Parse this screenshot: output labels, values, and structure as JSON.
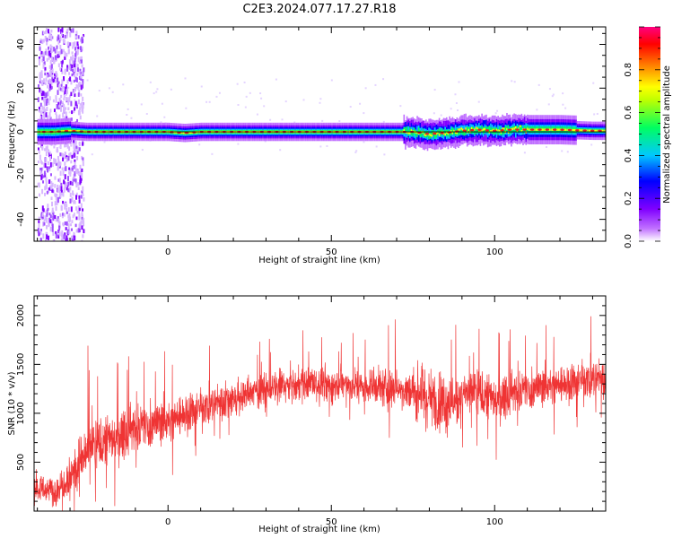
{
  "title": "C2E3.2024.077.17.27.R18",
  "colors": {
    "snr_trace": "#ef3434",
    "ridge_center": "#e02020",
    "axis": "#000000",
    "background": "#ffffff"
  },
  "chart_data": [
    {
      "type": "heatmap",
      "name": "spectrogram",
      "xlabel": "Height of straight line (km)",
      "ylabel": "Frequency (Hz)",
      "xlim": [
        -41,
        134
      ],
      "ylim": [
        -50,
        48
      ],
      "xticks": [
        0,
        50,
        100
      ],
      "yticks": [
        -40,
        -20,
        0,
        20,
        40
      ],
      "grid": false,
      "colorbar": {
        "label": "Normalized spectral amplitude",
        "range": [
          0,
          1
        ],
        "ticks": [
          "0.0",
          "0.2",
          "0.4",
          "0.6",
          "0.8"
        ],
        "colormap": [
          "#ffffff",
          "#8000ff",
          "#0000ff",
          "#00c8ff",
          "#00ff60",
          "#ffff00",
          "#ff8000",
          "#ff0000",
          "#ff0080"
        ]
      },
      "ridge_frequency_hz": {
        "x": [
          -40,
          -35,
          -30,
          -25,
          -20,
          -15,
          -10,
          -5,
          0,
          5,
          10,
          20,
          40,
          60,
          70,
          75,
          80,
          85,
          90,
          95,
          100,
          105,
          110,
          120,
          130,
          134
        ],
        "y": [
          0,
          0,
          0.5,
          0,
          0,
          0,
          0,
          0,
          0,
          -0.5,
          0,
          0,
          0,
          0,
          0,
          0,
          -1,
          -0.5,
          0.5,
          1,
          0.5,
          1,
          1,
          1,
          0.5,
          0.5
        ]
      }
    },
    {
      "type": "line",
      "name": "snr",
      "xlabel": "Height of straight line (km)",
      "ylabel": "SNR (10 * v/v)",
      "xlim": [
        -41,
        134
      ],
      "ylim": [
        0,
        2200
      ],
      "xticks": [
        0,
        50,
        100
      ],
      "yticks": [
        500,
        1000,
        1500,
        2000
      ],
      "grid": false,
      "envelope": {
        "x": [
          -41,
          -35,
          -30,
          -25,
          -20,
          -15,
          -10,
          -5,
          0,
          5,
          10,
          20,
          30,
          40,
          50,
          60,
          70,
          75,
          80,
          85,
          90,
          95,
          100,
          105,
          110,
          120,
          130,
          134
        ],
        "mean": [
          250,
          200,
          380,
          600,
          700,
          780,
          850,
          900,
          920,
          1000,
          1050,
          1150,
          1250,
          1300,
          1300,
          1280,
          1250,
          1220,
          1150,
          1100,
          1180,
          1200,
          1150,
          1200,
          1250,
          1300,
          1350,
          1350
        ],
        "spread": [
          200,
          180,
          300,
          350,
          350,
          330,
          320,
          300,
          300,
          280,
          260,
          250,
          230,
          230,
          220,
          230,
          260,
          300,
          380,
          400,
          350,
          330,
          300,
          280,
          260,
          260,
          270,
          270
        ]
      }
    }
  ]
}
